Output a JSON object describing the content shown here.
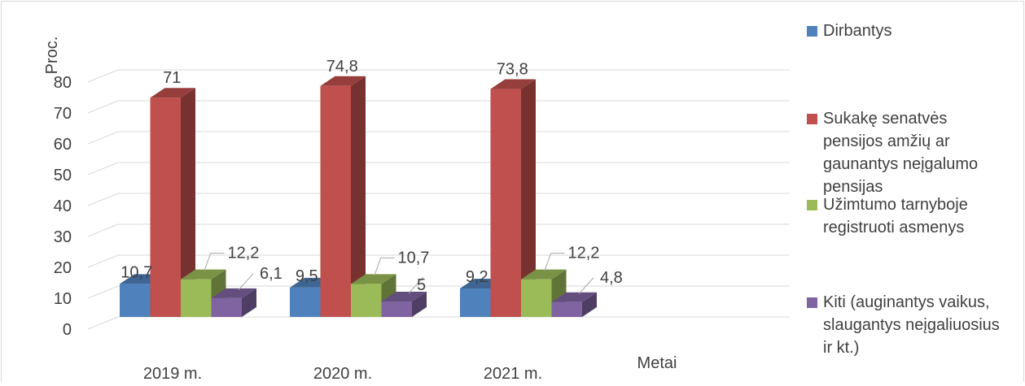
{
  "chart_data": {
    "type": "bar",
    "title": "",
    "xlabel": "Metai",
    "ylabel": "Proc.",
    "ylim": [
      0,
      80
    ],
    "yticks": [
      0,
      10,
      20,
      30,
      40,
      50,
      60,
      70,
      80
    ],
    "categories": [
      "2019 m.",
      "2020 m.",
      "2021 m."
    ],
    "series": [
      {
        "name": "Dirbantys",
        "values": [
          10.7,
          9.5,
          9.2
        ],
        "labels": [
          "10,7",
          "9,5",
          "9,2"
        ],
        "color": "#4F81BD"
      },
      {
        "name": "Sukakę senatvės pensijos amžių ar gaunantys neįgalumo pensijas",
        "values": [
          71,
          74.8,
          73.8
        ],
        "labels": [
          "71",
          "74,8",
          "73,8"
        ],
        "color": "#C0504D"
      },
      {
        "name": "Užimtumo tarnyboje registruoti asmenys",
        "values": [
          12.2,
          10.7,
          12.2
        ],
        "labels": [
          "12,2",
          "10,7",
          "12,2"
        ],
        "color": "#9BBB59"
      },
      {
        "name": "Kiti (auginantys vaikus, slaugantys neįgaliuosius ir kt.)",
        "values": [
          6.1,
          5,
          4.8
        ],
        "labels": [
          "6,1",
          "5",
          "4,8"
        ],
        "color": "#8064A2"
      }
    ],
    "legend_lines": [
      [
        "Dirbantys"
      ],
      [
        "Sukakę senatvės",
        "pensijos amžių ar",
        "gaunantys neįgalumo",
        "pensijas"
      ],
      [
        "Užimtumo tarnyboje",
        "registruoti asmenys"
      ],
      [
        "Kiti (auginantys vaikus,",
        "slaugantys neįgaliuosius",
        "ir kt.)"
      ]
    ],
    "legend_position": "right",
    "grid": true
  }
}
